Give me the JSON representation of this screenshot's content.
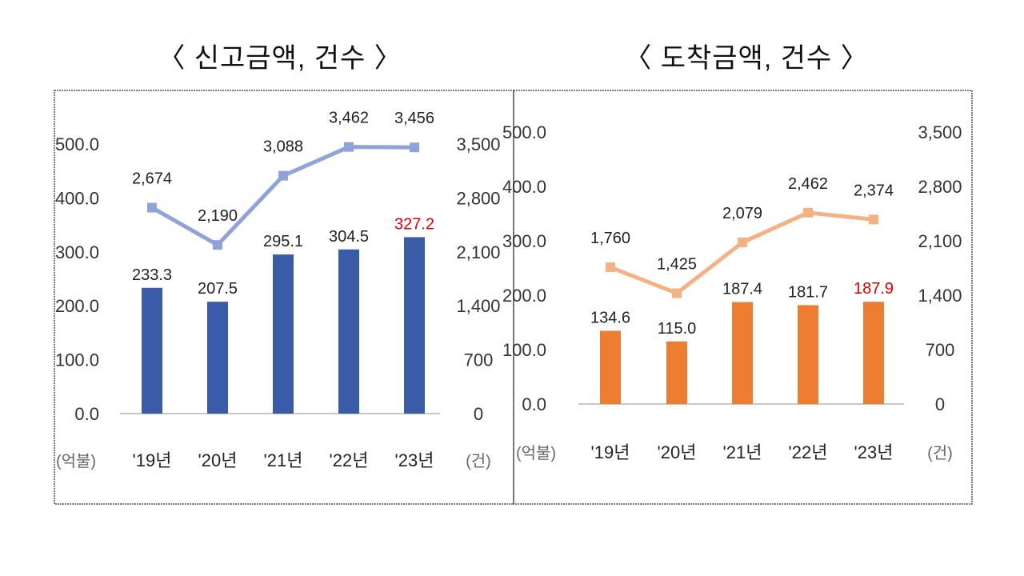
{
  "chart_data": [
    {
      "type": "bar+line",
      "title": "〈 신고금액, 건수 〉",
      "categories": [
        "'19년",
        "'20년",
        "'21년",
        "'22년",
        "'23년"
      ],
      "y_left": {
        "unit": "(억불)",
        "range": [
          0,
          500
        ],
        "ticks": [
          "0.0",
          "100.0",
          "200.0",
          "300.0",
          "400.0",
          "500.0"
        ]
      },
      "y_right": {
        "unit": "(건)",
        "range": [
          0,
          3500
        ],
        "ticks": [
          "0",
          "700",
          "1,400",
          "2,100",
          "2,800",
          "3,500"
        ]
      },
      "bar_series": {
        "values": [
          233.3,
          207.5,
          295.1,
          304.5,
          327.2
        ],
        "labels": [
          "233.3",
          "207.5",
          "295.1",
          "304.5",
          "327.2"
        ],
        "color": "#3a5ca8"
      },
      "line_series": {
        "values": [
          2674,
          2190,
          3088,
          3462,
          3456
        ],
        "labels": [
          "2,674",
          "2,190",
          "3,088",
          "3,462",
          "3,456"
        ],
        "color": "#8fa3d8"
      },
      "highlight_color": "#e00000",
      "grid": false
    },
    {
      "type": "bar+line",
      "title": "〈 도착금액, 건수 〉",
      "categories": [
        "'19년",
        "'20년",
        "'21년",
        "'22년",
        "'23년"
      ],
      "y_left": {
        "unit": "(억불)",
        "range": [
          0,
          500
        ],
        "ticks": [
          "0.0",
          "100.0",
          "200.0",
          "300.0",
          "400.0",
          "500.0"
        ]
      },
      "y_right": {
        "unit": "(건)",
        "range": [
          0,
          3500
        ],
        "ticks": [
          "0",
          "700",
          "1,400",
          "2,100",
          "2,800",
          "3,500"
        ]
      },
      "bar_series": {
        "values": [
          134.6,
          115.0,
          187.4,
          181.7,
          187.9
        ],
        "labels": [
          "134.6",
          "115.0",
          "187.4",
          "181.7",
          "187.9"
        ],
        "color": "#ed7d31"
      },
      "line_series": {
        "values": [
          1760,
          1425,
          2079,
          2462,
          2374
        ],
        "labels": [
          "1,760",
          "1,425",
          "2,079",
          "2,462",
          "2,374"
        ],
        "color": "#f4b183"
      },
      "highlight_color": "#e00000",
      "grid": false
    }
  ]
}
